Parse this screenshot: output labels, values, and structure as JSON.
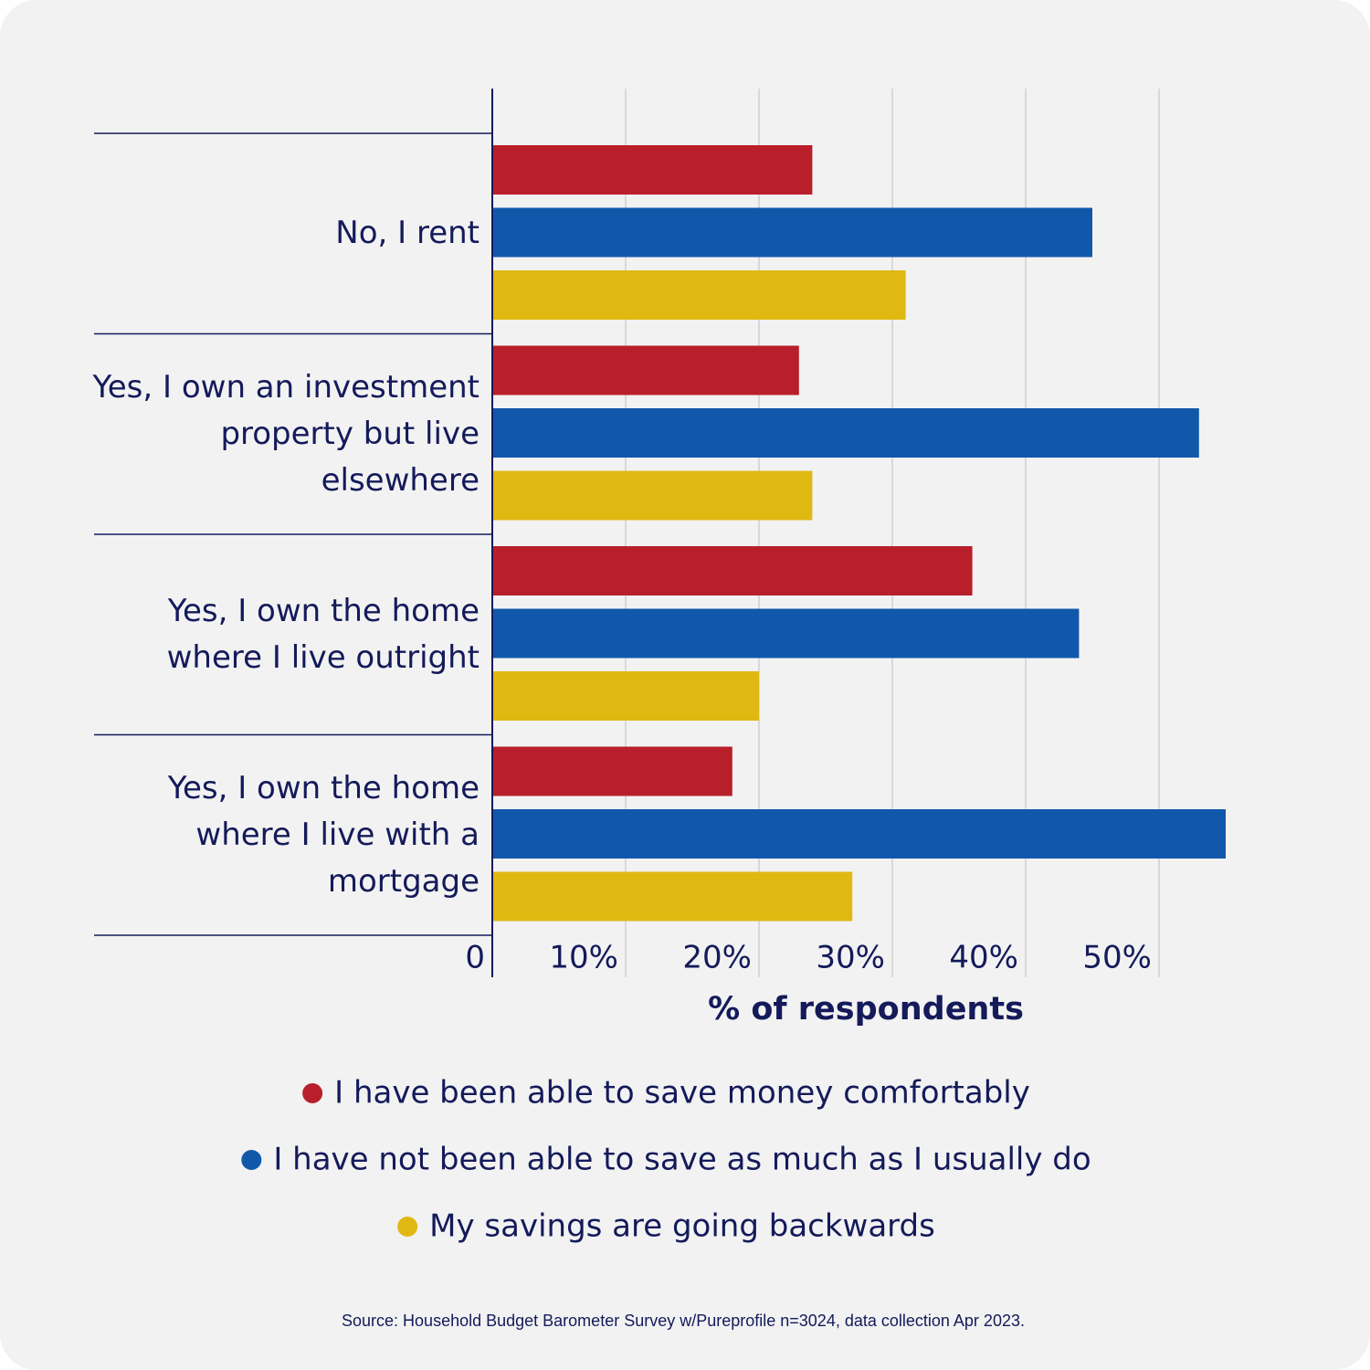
{
  "chart_data": {
    "type": "bar",
    "orientation": "horizontal",
    "categories": [
      "No, I rent",
      "Yes, I own an investment property but live elsewhere",
      "Yes, I own the home where I live outright",
      "Yes, I own the home where I live with a mortgage"
    ],
    "series": [
      {
        "name": "I have been able to save money comfortably",
        "color": "#b81f2a",
        "values": [
          24,
          23,
          36,
          18
        ]
      },
      {
        "name": "I have not been able to save as much as I usually do",
        "color": "#1158ab",
        "values": [
          45,
          53,
          44,
          55
        ]
      },
      {
        "name": "My savings are going backwards",
        "color": "#dfb812",
        "values": [
          31,
          24,
          20,
          27
        ]
      }
    ],
    "xlabel": "% of respondents",
    "xlim": [
      0,
      55
    ],
    "xticks": [
      0,
      {
        "value": 10,
        "label": "10%"
      },
      {
        "value": 20,
        "label": "20%"
      },
      {
        "value": 30,
        "label": "30%"
      },
      {
        "value": 40,
        "label": "40%"
      },
      {
        "value": 50,
        "label": "50%"
      }
    ],
    "grid": true,
    "legend": "bottom",
    "source": "Source: Household Budget Barometer Survey w/Pureprofile n=3024, data collection Apr 2023."
  }
}
